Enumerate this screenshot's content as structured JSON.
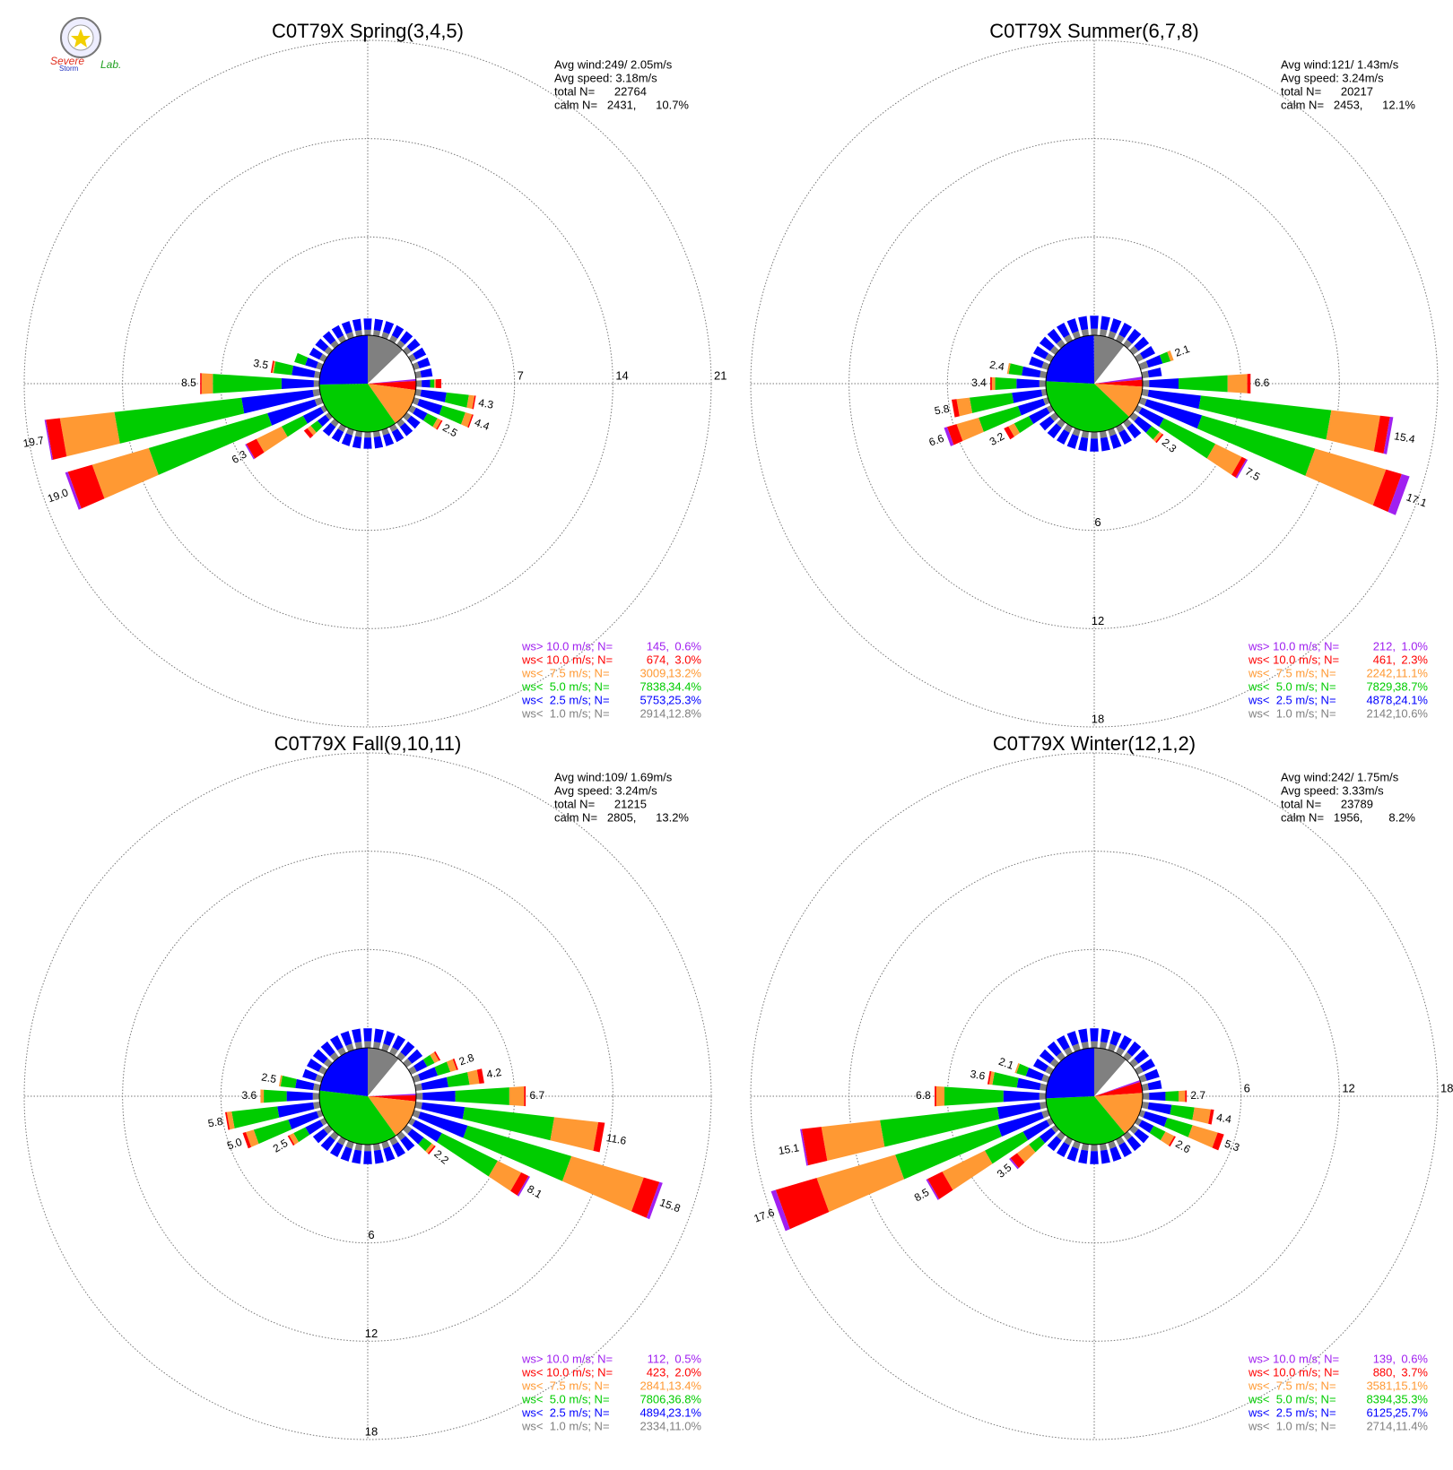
{
  "logo": {
    "line1": "Severe",
    "line2": "Storm",
    "line3": "Lab."
  },
  "chart_data": [
    {
      "type": "windrose",
      "title": "C0T79X Spring(3,4,5)",
      "stats": [
        "Avg wind:249/ 2.05m/s",
        "Avg speed: 3.18m/s",
        "total N=      22764"
      ],
      "calm": {
        "label": "calm N=   2431,",
        "pct": 10.7,
        "pct_label": "10.7%"
      },
      "rlim": [
        0,
        21
      ],
      "rticks": [
        7,
        14,
        21
      ],
      "rtick_dir": 90,
      "legend": [
        {
          "label": "ws> 10.0 m/s; N=",
          "n": "145,",
          "pct": 0.6,
          "pct_label": "0.6%",
          "color": "#a020f0"
        },
        {
          "label": "ws< 10.0 m/s; N=",
          "n": "674,",
          "pct": 3.0,
          "pct_label": "3.0%",
          "color": "#ff0000"
        },
        {
          "label": "ws<  7.5 m/s; N=",
          "n": "3009,",
          "pct": 13.2,
          "pct_label": "13.2%",
          "color": "#ff9933"
        },
        {
          "label": "ws<  5.0 m/s; N=",
          "n": "7838,",
          "pct": 34.4,
          "pct_label": "34.4%",
          "color": "#00cc00"
        },
        {
          "label": "ws<  2.5 m/s; N=",
          "n": "5753,",
          "pct": 25.3,
          "pct_label": "25.3%",
          "color": "#0000ff"
        },
        {
          "label": "ws<  1.0 m/s; N=",
          "n": "2914,",
          "pct": 12.8,
          "pct_label": "12.8%",
          "color": "#808080"
        }
      ],
      "spokes": [
        {
          "dir": 260,
          "values": [
            0.5,
            5.1,
            9.1,
            3.9,
            1.0,
            0.1
          ],
          "label": "19.7"
        },
        {
          "dir": 250,
          "values": [
            0.5,
            3.5,
            8.8,
            4.2,
            1.8,
            0.2
          ],
          "label": "19.0"
        },
        {
          "dir": 270,
          "values": [
            0.4,
            2.3,
            4.9,
            0.8,
            0.1
          ],
          "label": "8.5"
        },
        {
          "dir": 280,
          "values": [
            0.4,
            1.6,
            1.3,
            0.1,
            0.1
          ],
          "label": "3.5"
        },
        {
          "dir": 240,
          "values": [
            0.3,
            1.4,
            1.7,
            2.0,
            0.8,
            0.1
          ],
          "label": "6.3"
        },
        {
          "dir": 100,
          "values": [
            0.4,
            1.8,
            1.6,
            0.4,
            0.1
          ],
          "label": "4.3"
        },
        {
          "dir": 110,
          "values": [
            0.4,
            1.7,
            1.7,
            0.5,
            0.1
          ],
          "label": "4.4"
        },
        {
          "dir": 120,
          "values": [
            0.4,
            0.9,
            0.8,
            0.3,
            0.1
          ],
          "label": "2.5"
        },
        {
          "dir": 290,
          "values": [
            0.4,
            0.8,
            0.8
          ]
        },
        {
          "dir": 230,
          "values": [
            0.3,
            0.7,
            0.6,
            0.3,
            0.3
          ]
        },
        {
          "dir": 90,
          "values": [
            0.4,
            0.6,
            0.3,
            0.1,
            0.4
          ]
        }
      ],
      "minor_dirs": [
        0,
        10,
        20,
        30,
        40,
        50,
        60,
        70,
        80,
        130,
        140,
        150,
        160,
        170,
        180,
        190,
        200,
        210,
        220,
        300,
        310,
        320,
        330,
        340,
        350
      ],
      "minor_values": [
        0.4,
        0.8
      ]
    },
    {
      "type": "windrose",
      "title": "C0T79X Summer(6,7,8)",
      "stats": [
        "Avg wind:121/ 1.43m/s",
        "Avg speed: 3.24m/s",
        "total N=      20217"
      ],
      "calm": {
        "label": "calm N=   2453,",
        "pct": 12.1,
        "pct_label": "12.1%"
      },
      "rlim": [
        0,
        18
      ],
      "rticks": [
        6,
        12,
        18
      ],
      "rtick_dir": 180,
      "legend": [
        {
          "label": "ws> 10.0 m/s; N=",
          "n": "212,",
          "pct": 1.0,
          "pct_label": "1.0%",
          "color": "#a020f0"
        },
        {
          "label": "ws< 10.0 m/s; N=",
          "n": "461,",
          "pct": 2.3,
          "pct_label": "2.3%",
          "color": "#ff0000"
        },
        {
          "label": "ws<  7.5 m/s; N=",
          "n": "2242,",
          "pct": 11.1,
          "pct_label": "11.1%",
          "color": "#ff9933"
        },
        {
          "label": "ws<  5.0 m/s; N=",
          "n": "7829,",
          "pct": 38.7,
          "pct_label": "38.7%",
          "color": "#00cc00"
        },
        {
          "label": "ws<  2.5 m/s; N=",
          "n": "4878,",
          "pct": 24.1,
          "pct_label": "24.1%",
          "color": "#0000ff"
        },
        {
          "label": "ws<  1.0 m/s; N=",
          "n": "2142,",
          "pct": 10.6,
          "pct_label": "10.6%",
          "color": "#808080"
        }
      ],
      "spokes": [
        {
          "dir": 90,
          "values": [
            0.4,
            1.8,
            3.0,
            1.2,
            0.2
          ],
          "label": "6.6"
        },
        {
          "dir": 100,
          "values": [
            0.4,
            3.2,
            8.0,
            3.0,
            0.6,
            0.2
          ],
          "label": "15.4"
        },
        {
          "dir": 110,
          "values": [
            0.4,
            3.5,
            7.2,
            4.5,
            1.0,
            0.5
          ],
          "label": "17.1"
        },
        {
          "dir": 120,
          "values": [
            0.3,
            1.5,
            3.5,
            1.8,
            0.3,
            0.1
          ],
          "label": "7.5"
        },
        {
          "dir": 130,
          "values": [
            0.4,
            1.0,
            0.6,
            0.2,
            0.1
          ],
          "label": "2.3"
        },
        {
          "dir": 70,
          "values": [
            0.5,
            0.9,
            0.5,
            0.2
          ],
          "label": "2.1"
        },
        {
          "dir": 250,
          "values": [
            0.3,
            1.6,
            2.5,
            1.4,
            0.6,
            0.2
          ],
          "label": "6.6"
        },
        {
          "dir": 260,
          "values": [
            0.3,
            1.8,
            2.6,
            0.8,
            0.3
          ],
          "label": "5.8"
        },
        {
          "dir": 270,
          "values": [
            0.4,
            1.4,
            1.3,
            0.2,
            0.1
          ],
          "label": "3.4"
        },
        {
          "dir": 280,
          "values": [
            0.4,
            1.1,
            0.8,
            0.1
          ],
          "label": "2.4"
        },
        {
          "dir": 240,
          "values": [
            0.3,
            1.2,
            1.0,
            0.4,
            0.3
          ],
          "label": "3.2"
        }
      ],
      "minor_dirs": [
        0,
        10,
        20,
        30,
        40,
        50,
        60,
        80,
        140,
        150,
        160,
        170,
        180,
        190,
        200,
        210,
        220,
        230,
        290,
        300,
        310,
        320,
        330,
        340,
        350
      ],
      "minor_values": [
        0.4,
        0.8
      ]
    },
    {
      "type": "windrose",
      "title": "C0T79X Fall(9,10,11)",
      "stats": [
        "Avg wind:109/ 1.69m/s",
        "Avg speed: 3.24m/s",
        "total N=      21215"
      ],
      "calm": {
        "label": "calm N=   2805,",
        "pct": 13.2,
        "pct_label": "13.2%"
      },
      "rlim": [
        0,
        18
      ],
      "rticks": [
        6,
        12,
        18
      ],
      "rtick_dir": 180,
      "legend": [
        {
          "label": "ws> 10.0 m/s; N=",
          "n": "112,",
          "pct": 0.5,
          "pct_label": "0.5%",
          "color": "#a020f0"
        },
        {
          "label": "ws< 10.0 m/s; N=",
          "n": "423,",
          "pct": 2.0,
          "pct_label": "2.0%",
          "color": "#ff0000"
        },
        {
          "label": "ws<  7.5 m/s; N=",
          "n": "2841,",
          "pct": 13.4,
          "pct_label": "13.4%",
          "color": "#ff9933"
        },
        {
          "label": "ws<  5.0 m/s; N=",
          "n": "7806,",
          "pct": 36.8,
          "pct_label": "36.8%",
          "color": "#00cc00"
        },
        {
          "label": "ws<  2.5 m/s; N=",
          "n": "4894,",
          "pct": 23.1,
          "pct_label": "23.1%",
          "color": "#0000ff"
        },
        {
          "label": "ws<  1.0 m/s; N=",
          "n": "2334,",
          "pct": 11.0,
          "pct_label": "11.0%",
          "color": "#808080"
        }
      ],
      "spokes": [
        {
          "dir": 90,
          "values": [
            0.4,
            2.0,
            3.3,
            0.9,
            0.1
          ],
          "label": "6.7"
        },
        {
          "dir": 100,
          "values": [
            0.4,
            2.6,
            5.5,
            2.7,
            0.4
          ],
          "label": "11.6"
        },
        {
          "dir": 110,
          "values": [
            0.4,
            3.0,
            6.6,
            4.6,
            1.0,
            0.2
          ],
          "label": "15.8"
        },
        {
          "dir": 120,
          "values": [
            0.3,
            1.8,
            3.8,
            1.6,
            0.5,
            0.1
          ],
          "label": "8.1"
        },
        {
          "dir": 130,
          "values": [
            0.4,
            0.9,
            0.6,
            0.2,
            0.1
          ],
          "label": "2.2"
        },
        {
          "dir": 70,
          "values": [
            0.4,
            1.1,
            0.8,
            0.4,
            0.1
          ],
          "label": "2.8"
        },
        {
          "dir": 80,
          "values": [
            0.4,
            1.6,
            1.3,
            0.6,
            0.3
          ],
          "label": "4.2"
        },
        {
          "dir": 270,
          "values": [
            0.4,
            1.6,
            1.4,
            0.2
          ],
          "label": "3.6"
        },
        {
          "dir": 280,
          "values": [
            0.4,
            1.1,
            0.9,
            0.1
          ],
          "label": "2.5"
        },
        {
          "dir": 260,
          "values": [
            0.4,
            2.2,
            2.8,
            0.3,
            0.1
          ],
          "label": "5.8"
        },
        {
          "dir": 250,
          "values": [
            0.3,
            1.8,
            2.2,
            0.5,
            0.2
          ],
          "label": "5.0"
        },
        {
          "dir": 240,
          "values": [
            0.3,
            1.0,
            0.8,
            0.3,
            0.1
          ],
          "label": "2.5"
        },
        {
          "dir": 60,
          "values": [
            0.4,
            0.7,
            0.5,
            0.3,
            0.1
          ]
        }
      ],
      "minor_dirs": [
        0,
        10,
        20,
        30,
        40,
        50,
        140,
        150,
        160,
        170,
        180,
        190,
        200,
        210,
        220,
        230,
        290,
        300,
        310,
        320,
        330,
        340,
        350
      ],
      "minor_values": [
        0.4,
        0.8
      ]
    },
    {
      "type": "windrose",
      "title": "C0T79X Winter(12,1,2)",
      "stats": [
        "Avg wind:242/ 1.75m/s",
        "Avg speed: 3.33m/s",
        "total N=      23789"
      ],
      "calm": {
        "label": "calm N=   1956,",
        "pct": 8.2,
        "pct_label": "8.2%"
      },
      "rlim": [
        0,
        18
      ],
      "rticks": [
        6,
        12,
        18
      ],
      "rtick_dir": 90,
      "legend": [
        {
          "label": "ws> 10.0 m/s; N=",
          "n": "139,",
          "pct": 0.6,
          "pct_label": "0.6%",
          "color": "#a020f0"
        },
        {
          "label": "ws< 10.0 m/s; N=",
          "n": "880,",
          "pct": 3.7,
          "pct_label": "3.7%",
          "color": "#ff0000"
        },
        {
          "label": "ws<  7.5 m/s; N=",
          "n": "3581,",
          "pct": 15.1,
          "pct_label": "15.1%",
          "color": "#ff9933"
        },
        {
          "label": "ws<  5.0 m/s; N=",
          "n": "8394,",
          "pct": 35.3,
          "pct_label": "35.3%",
          "color": "#00cc00"
        },
        {
          "label": "ws<  2.5 m/s; N=",
          "n": "6125,",
          "pct": 25.7,
          "pct_label": "25.7%",
          "color": "#0000ff"
        },
        {
          "label": "ws<  1.0 m/s; N=",
          "n": "2714,",
          "pct": 11.4,
          "pct_label": "11.4%",
          "color": "#808080"
        }
      ],
      "spokes": [
        {
          "dir": 260,
          "values": [
            0.4,
            2.6,
            7.2,
            3.6,
            1.2,
            0.1
          ],
          "label": "15.1"
        },
        {
          "dir": 250,
          "values": [
            0.4,
            2.8,
            6.5,
            5.0,
            2.6,
            0.3
          ],
          "label": "17.6"
        },
        {
          "dir": 240,
          "values": [
            0.3,
            1.6,
            2.6,
            2.9,
            1.0,
            0.1
          ],
          "label": "8.5"
        },
        {
          "dir": 230,
          "values": [
            0.3,
            0.9,
            0.8,
            0.9,
            0.5,
            0.1
          ],
          "label": "3.5"
        },
        {
          "dir": 270,
          "values": [
            0.4,
            2.2,
            3.6,
            0.5,
            0.1
          ],
          "label": "6.8"
        },
        {
          "dir": 280,
          "values": [
            0.4,
            1.4,
            1.5,
            0.2,
            0.1
          ],
          "label": "3.6"
        },
        {
          "dir": 290,
          "values": [
            0.4,
            1.0,
            0.6,
            0.1
          ],
          "label": "2.1"
        },
        {
          "dir": 90,
          "values": [
            0.4,
            1.0,
            0.8,
            0.4,
            0.1
          ],
          "label": "2.7"
        },
        {
          "dir": 100,
          "values": [
            0.4,
            1.4,
            1.4,
            1.0,
            0.2
          ],
          "label": "4.4"
        },
        {
          "dir": 110,
          "values": [
            0.3,
            1.4,
            1.6,
            1.6,
            0.4
          ],
          "label": "5.3"
        },
        {
          "dir": 120,
          "values": [
            0.3,
            0.8,
            0.8,
            0.6,
            0.1
          ],
          "label": "2.6"
        }
      ],
      "minor_dirs": [
        0,
        10,
        20,
        30,
        40,
        50,
        60,
        70,
        80,
        130,
        140,
        150,
        160,
        170,
        180,
        190,
        200,
        210,
        220,
        300,
        310,
        320,
        330,
        340,
        350
      ],
      "minor_values": [
        0.4,
        0.8
      ]
    }
  ]
}
